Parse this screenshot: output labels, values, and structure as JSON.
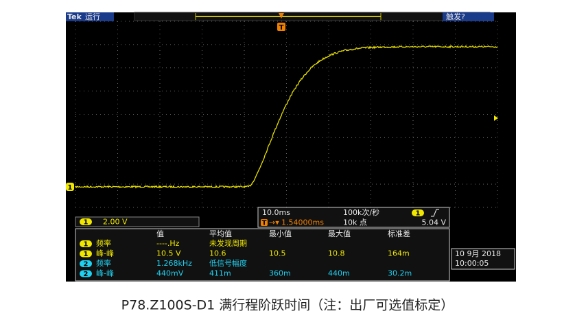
{
  "screen": {
    "brand": "Tek",
    "status": "运行",
    "trigger_status": "触发?",
    "channel_scale": {
      "channel": "1",
      "label": "2.00 V"
    },
    "timebase": {
      "time_per_div": "10.0ms",
      "sample_rate": "100k次/秒",
      "trigger_channel": "1",
      "trigger_position": "1.54000ms",
      "record_length": "10k 点",
      "trigger_level": "5.04 V"
    },
    "measurements": {
      "headers": [
        "值",
        "平均值",
        "最小值",
        "最大值",
        "标准差"
      ],
      "rows": [
        {
          "channel": "1",
          "name": "频率",
          "cells": [
            "----.Hz",
            "未发现周期"
          ]
        },
        {
          "channel": "1",
          "name": "峰-峰",
          "cells": [
            "10.5 V",
            "10.6",
            "10.5",
            "10.8",
            "164m"
          ]
        },
        {
          "channel": "2",
          "name": "频率",
          "cells": [
            "1.268kHz",
            "低信号幅度"
          ]
        },
        {
          "channel": "2",
          "name": "峰-峰",
          "cells": [
            "440mV",
            "411m",
            "360m",
            "440m",
            "30.2m"
          ]
        }
      ]
    },
    "date": "10 9月 2018",
    "time": "10:00:05"
  },
  "caption": "P78.Z100S-D1 满行程阶跃时间（注：出厂可选值标定）"
}
